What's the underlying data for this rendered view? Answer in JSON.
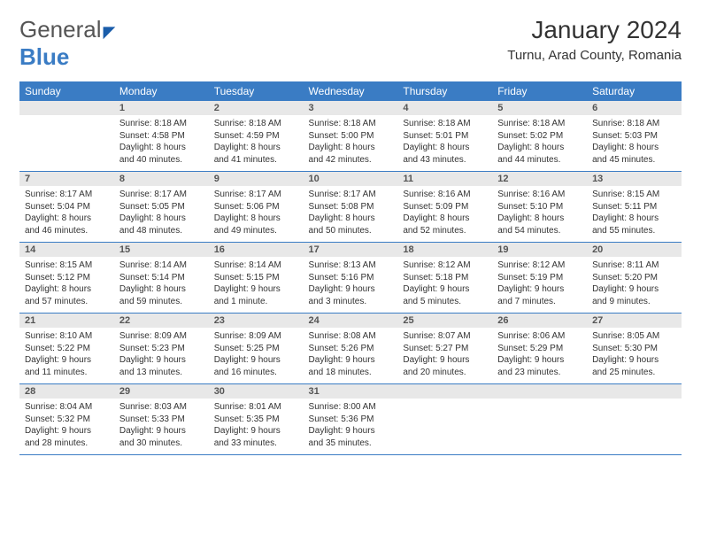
{
  "logo": {
    "text_general": "General",
    "text_blue": "Blue"
  },
  "title": "January 2024",
  "location": "Turnu, Arad County, Romania",
  "colors": {
    "header_bg": "#3a7cc4",
    "header_text": "#ffffff",
    "daynum_bg": "#e8e8e8",
    "cell_border": "#3a7cc4",
    "body_text": "#333333"
  },
  "weekdays": [
    "Sunday",
    "Monday",
    "Tuesday",
    "Wednesday",
    "Thursday",
    "Friday",
    "Saturday"
  ],
  "weeks": [
    [
      null,
      {
        "n": "1",
        "sunrise": "8:18 AM",
        "sunset": "4:58 PM",
        "daylight": "8 hours and 40 minutes."
      },
      {
        "n": "2",
        "sunrise": "8:18 AM",
        "sunset": "4:59 PM",
        "daylight": "8 hours and 41 minutes."
      },
      {
        "n": "3",
        "sunrise": "8:18 AM",
        "sunset": "5:00 PM",
        "daylight": "8 hours and 42 minutes."
      },
      {
        "n": "4",
        "sunrise": "8:18 AM",
        "sunset": "5:01 PM",
        "daylight": "8 hours and 43 minutes."
      },
      {
        "n": "5",
        "sunrise": "8:18 AM",
        "sunset": "5:02 PM",
        "daylight": "8 hours and 44 minutes."
      },
      {
        "n": "6",
        "sunrise": "8:18 AM",
        "sunset": "5:03 PM",
        "daylight": "8 hours and 45 minutes."
      }
    ],
    [
      {
        "n": "7",
        "sunrise": "8:17 AM",
        "sunset": "5:04 PM",
        "daylight": "8 hours and 46 minutes."
      },
      {
        "n": "8",
        "sunrise": "8:17 AM",
        "sunset": "5:05 PM",
        "daylight": "8 hours and 48 minutes."
      },
      {
        "n": "9",
        "sunrise": "8:17 AM",
        "sunset": "5:06 PM",
        "daylight": "8 hours and 49 minutes."
      },
      {
        "n": "10",
        "sunrise": "8:17 AM",
        "sunset": "5:08 PM",
        "daylight": "8 hours and 50 minutes."
      },
      {
        "n": "11",
        "sunrise": "8:16 AM",
        "sunset": "5:09 PM",
        "daylight": "8 hours and 52 minutes."
      },
      {
        "n": "12",
        "sunrise": "8:16 AM",
        "sunset": "5:10 PM",
        "daylight": "8 hours and 54 minutes."
      },
      {
        "n": "13",
        "sunrise": "8:15 AM",
        "sunset": "5:11 PM",
        "daylight": "8 hours and 55 minutes."
      }
    ],
    [
      {
        "n": "14",
        "sunrise": "8:15 AM",
        "sunset": "5:12 PM",
        "daylight": "8 hours and 57 minutes."
      },
      {
        "n": "15",
        "sunrise": "8:14 AM",
        "sunset": "5:14 PM",
        "daylight": "8 hours and 59 minutes."
      },
      {
        "n": "16",
        "sunrise": "8:14 AM",
        "sunset": "5:15 PM",
        "daylight": "9 hours and 1 minute."
      },
      {
        "n": "17",
        "sunrise": "8:13 AM",
        "sunset": "5:16 PM",
        "daylight": "9 hours and 3 minutes."
      },
      {
        "n": "18",
        "sunrise": "8:12 AM",
        "sunset": "5:18 PM",
        "daylight": "9 hours and 5 minutes."
      },
      {
        "n": "19",
        "sunrise": "8:12 AM",
        "sunset": "5:19 PM",
        "daylight": "9 hours and 7 minutes."
      },
      {
        "n": "20",
        "sunrise": "8:11 AM",
        "sunset": "5:20 PM",
        "daylight": "9 hours and 9 minutes."
      }
    ],
    [
      {
        "n": "21",
        "sunrise": "8:10 AM",
        "sunset": "5:22 PM",
        "daylight": "9 hours and 11 minutes."
      },
      {
        "n": "22",
        "sunrise": "8:09 AM",
        "sunset": "5:23 PM",
        "daylight": "9 hours and 13 minutes."
      },
      {
        "n": "23",
        "sunrise": "8:09 AM",
        "sunset": "5:25 PM",
        "daylight": "9 hours and 16 minutes."
      },
      {
        "n": "24",
        "sunrise": "8:08 AM",
        "sunset": "5:26 PM",
        "daylight": "9 hours and 18 minutes."
      },
      {
        "n": "25",
        "sunrise": "8:07 AM",
        "sunset": "5:27 PM",
        "daylight": "9 hours and 20 minutes."
      },
      {
        "n": "26",
        "sunrise": "8:06 AM",
        "sunset": "5:29 PM",
        "daylight": "9 hours and 23 minutes."
      },
      {
        "n": "27",
        "sunrise": "8:05 AM",
        "sunset": "5:30 PM",
        "daylight": "9 hours and 25 minutes."
      }
    ],
    [
      {
        "n": "28",
        "sunrise": "8:04 AM",
        "sunset": "5:32 PM",
        "daylight": "9 hours and 28 minutes."
      },
      {
        "n": "29",
        "sunrise": "8:03 AM",
        "sunset": "5:33 PM",
        "daylight": "9 hours and 30 minutes."
      },
      {
        "n": "30",
        "sunrise": "8:01 AM",
        "sunset": "5:35 PM",
        "daylight": "9 hours and 33 minutes."
      },
      {
        "n": "31",
        "sunrise": "8:00 AM",
        "sunset": "5:36 PM",
        "daylight": "9 hours and 35 minutes."
      },
      null,
      null,
      null
    ]
  ],
  "labels": {
    "sunrise": "Sunrise:",
    "sunset": "Sunset:",
    "daylight": "Daylight:"
  }
}
